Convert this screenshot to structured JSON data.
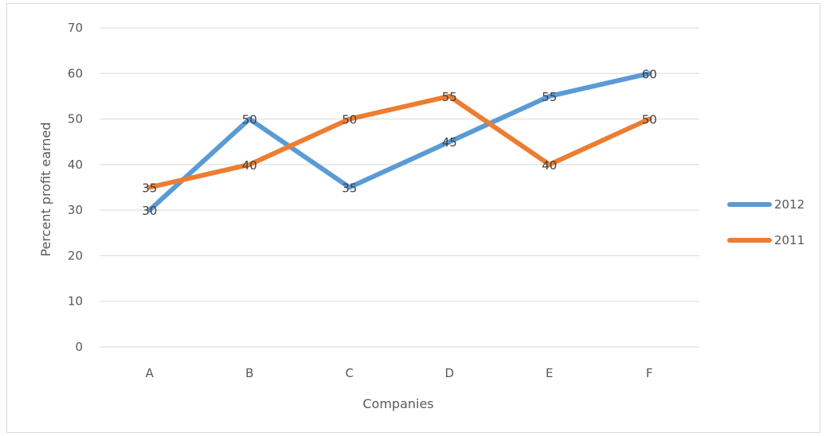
{
  "chart_data": {
    "type": "line",
    "title": "",
    "xlabel": "Companies",
    "ylabel": "Percent profit earned",
    "categories": [
      "A",
      "B",
      "C",
      "D",
      "E",
      "F"
    ],
    "ylim": [
      0,
      70
    ],
    "yticks": [
      0,
      10,
      20,
      30,
      40,
      50,
      60,
      70
    ],
    "grid": true,
    "legend_position": "right",
    "series": [
      {
        "name": "2012",
        "values": [
          30,
          50,
          35,
          45,
          55,
          60
        ],
        "color": "#5b9bd5"
      },
      {
        "name": "2011",
        "values": [
          35,
          40,
          50,
          55,
          40,
          50
        ],
        "color": "#ed7d31"
      }
    ]
  }
}
